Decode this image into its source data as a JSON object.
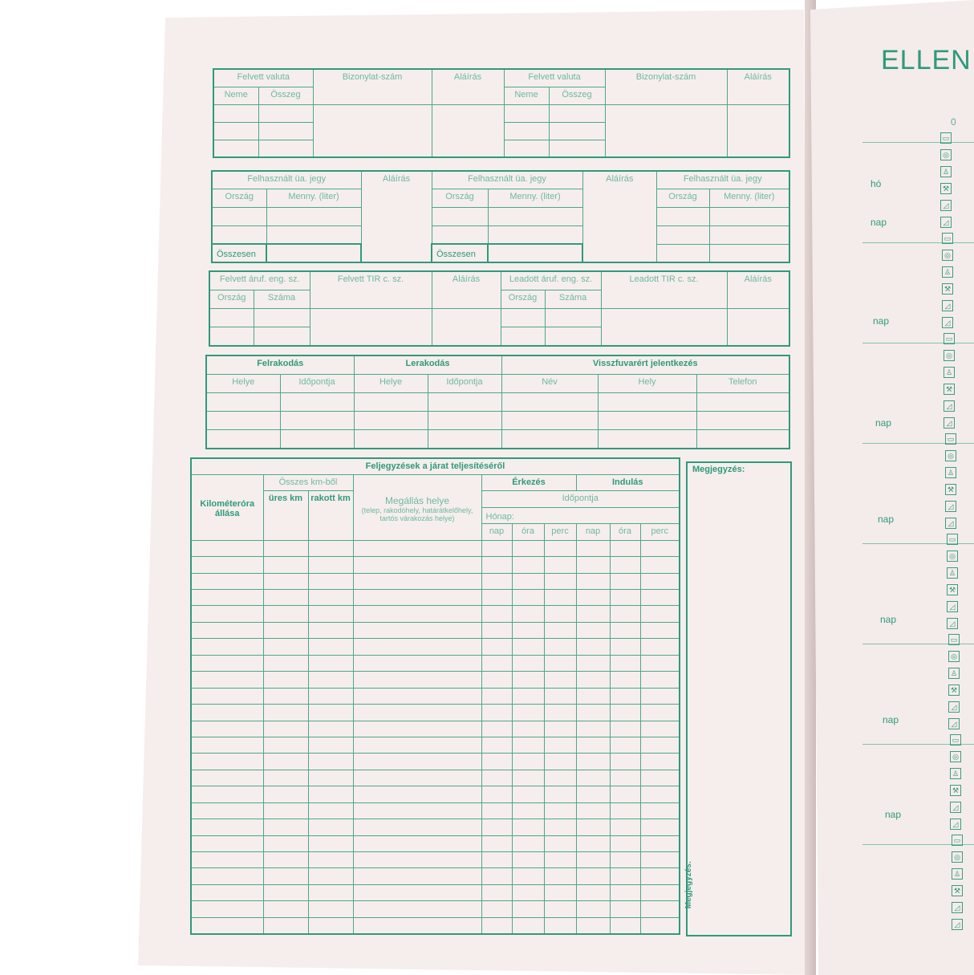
{
  "currency": {
    "taken": "Felvett valuta",
    "type": "Neme",
    "amount": "Összeg",
    "doc_no": "Bizonylat-szám",
    "signature": "Aláírás"
  },
  "fuel": {
    "used": "Felhasznált üa. jegy",
    "country": "Ország",
    "qty": "Menny. (liter)",
    "signature": "Aláírás",
    "total": "Összesen"
  },
  "permits": {
    "taken": "Felvett áruf. eng. sz.",
    "taken_tir": "Felvett TIR c. sz.",
    "given": "Leadott áruf. eng. sz.",
    "given_tir": "Leadott TIR c. sz.",
    "country": "Ország",
    "number": "Száma",
    "signature": "Aláírás"
  },
  "loading": {
    "load": "Felrakodás",
    "unload": "Lerakodás",
    "place": "Helye",
    "time": "Időpontja",
    "return": "Visszfuvarért jelentkezés",
    "name": "Név",
    "location": "Hely",
    "phone": "Telefon"
  },
  "trip": {
    "title": "Feljegyzések a járat teljesítéséről",
    "odometer": "Kilométeróra állása",
    "total_km": "Összes km-ből",
    "empty": "üres km",
    "loaded": "rakott km",
    "stop": "Megállás helye",
    "stop_note": "(telep, rakodóhely, határátkelőhely, tartós várakozás helye)",
    "arrival": "Érkezés",
    "departure": "Indulás",
    "time": "Időpontja",
    "month": "Hónap:",
    "day": "nap",
    "hour": "óra",
    "minute": "perc"
  },
  "notes": {
    "label": "Megjegyzés:",
    "vertical": "Megjegyzés:"
  },
  "right_page": {
    "title": "ELLEN",
    "zero": "0",
    "month": "hó",
    "day": "nap"
  },
  "colors": {
    "ink": "#2f9a7c",
    "paper": "#f6eeec"
  }
}
